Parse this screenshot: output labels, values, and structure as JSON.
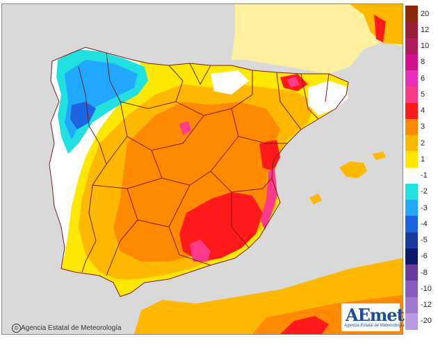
{
  "credit": {
    "copyright_symbol": "©",
    "text": "Agencia Estatal de Meteorología"
  },
  "logo": {
    "mark": "AEmet",
    "subtitle": "Agencia Estatal de Meteorología"
  },
  "legend": {
    "items": [
      {
        "label": "20",
        "color": "#8b2a06"
      },
      {
        "label": "12",
        "color": "#9c1e38"
      },
      {
        "label": "10",
        "color": "#b01e5c"
      },
      {
        "label": "8",
        "color": "#d4108c"
      },
      {
        "label": "6",
        "color": "#ee2eb8"
      },
      {
        "label": "5",
        "color": "#ff3c8c"
      },
      {
        "label": "4",
        "color": "#ff1a1a"
      },
      {
        "label": "3",
        "color": "#ff8a00"
      },
      {
        "label": "2",
        "color": "#ffb800"
      },
      {
        "label": "1",
        "color": "#ffe800"
      },
      {
        "label": "-1",
        "color": "#ffffff"
      },
      {
        "label": "-2",
        "color": "#20e0e0"
      },
      {
        "label": "-3",
        "color": "#20a8ff"
      },
      {
        "label": "-4",
        "color": "#1c64e0"
      },
      {
        "label": "-5",
        "color": "#1a3ca0"
      },
      {
        "label": "-6",
        "color": "#0c1a6a"
      },
      {
        "label": "-8",
        "color": "#6a3c9e"
      },
      {
        "label": "-10",
        "color": "#8a5cc0"
      },
      {
        "label": "-12",
        "color": "#a078d0"
      },
      {
        "label": "-20",
        "color": "#b89ae0"
      }
    ]
  },
  "colors": {
    "sea": "#d9d9d9",
    "land_outside": "#fff0a0",
    "anomaly_white": "#ffffff",
    "anomaly_1": "#ffe800",
    "anomaly_2": "#ffb800",
    "anomaly_3": "#ff8a00",
    "anomaly_4": "#ff1a1a",
    "anomaly_5": "#ff3c8c",
    "anomaly_neg2": "#20e0e0",
    "anomaly_neg3": "#20a8ff",
    "anomaly_neg4": "#1c64e0",
    "borders": "#7a1a1a"
  }
}
